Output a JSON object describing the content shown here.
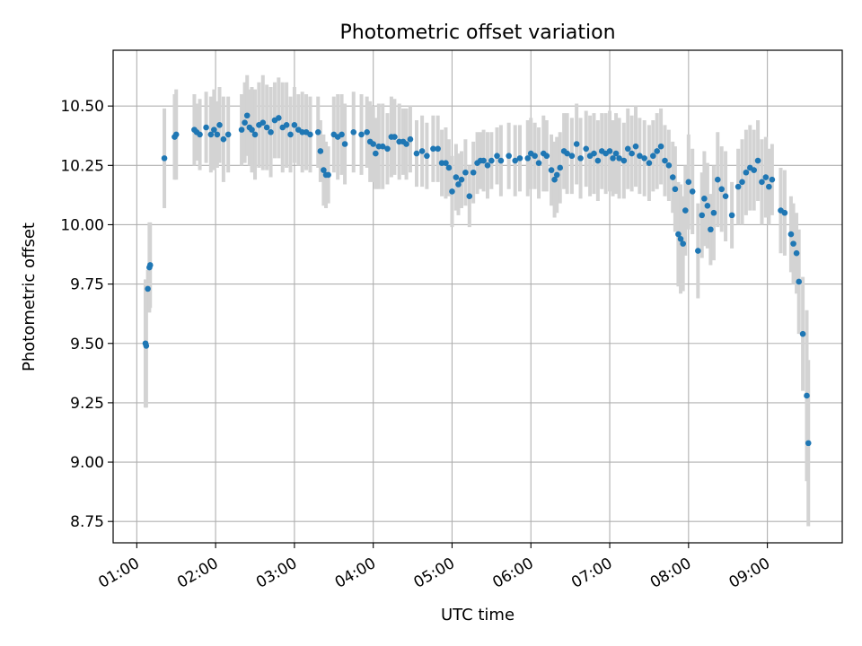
{
  "chart_data": {
    "type": "scatter",
    "title": "Photometric offset variation",
    "xlabel": "UTC time",
    "ylabel": "Photometric offset",
    "x_unit": "hours UTC",
    "xlim": [
      0.7,
      9.95
    ],
    "ylim": [
      8.66,
      10.735
    ],
    "x_ticks": [
      1,
      2,
      3,
      4,
      5,
      6,
      7,
      8,
      9
    ],
    "x_tick_labels": [
      "01:00",
      "02:00",
      "03:00",
      "04:00",
      "05:00",
      "06:00",
      "07:00",
      "08:00",
      "09:00"
    ],
    "y_ticks": [
      8.75,
      9.0,
      9.25,
      9.5,
      9.75,
      10.0,
      10.25,
      10.5
    ],
    "y_tick_labels": [
      "8.75",
      "9.00",
      "9.25",
      "9.50",
      "9.75",
      "10.00",
      "10.25",
      "10.50"
    ],
    "grid": true,
    "colors": {
      "points": "#1f77b4",
      "errorbars": "#d3d3d3",
      "grid": "#b0b0b0"
    },
    "series": [
      {
        "marker": "circle",
        "errorbar": "vertical",
        "points": [
          [
            1.11,
            9.5,
            0.27
          ],
          [
            1.12,
            9.49,
            0.26
          ],
          [
            1.14,
            9.73,
            0.08
          ],
          [
            1.16,
            9.82,
            0.19
          ],
          [
            1.17,
            9.83,
            0.18
          ],
          [
            1.35,
            10.28,
            0.21
          ],
          [
            1.48,
            10.37,
            0.18
          ],
          [
            1.5,
            10.38,
            0.19
          ],
          [
            1.73,
            10.4,
            0.15
          ],
          [
            1.76,
            10.39,
            0.12
          ],
          [
            1.8,
            10.38,
            0.15
          ],
          [
            1.88,
            10.41,
            0.15
          ],
          [
            1.94,
            10.38,
            0.16
          ],
          [
            1.98,
            10.4,
            0.17
          ],
          [
            2.02,
            10.38,
            0.14
          ],
          [
            2.05,
            10.42,
            0.16
          ],
          [
            2.1,
            10.36,
            0.18
          ],
          [
            2.16,
            10.38,
            0.16
          ],
          [
            2.33,
            10.4,
            0.15
          ],
          [
            2.37,
            10.43,
            0.17
          ],
          [
            2.4,
            10.46,
            0.17
          ],
          [
            2.43,
            10.41,
            0.16
          ],
          [
            2.46,
            10.4,
            0.18
          ],
          [
            2.5,
            10.38,
            0.19
          ],
          [
            2.55,
            10.42,
            0.18
          ],
          [
            2.6,
            10.43,
            0.2
          ],
          [
            2.65,
            10.41,
            0.18
          ],
          [
            2.7,
            10.39,
            0.19
          ],
          [
            2.75,
            10.44,
            0.16
          ],
          [
            2.8,
            10.45,
            0.17
          ],
          [
            2.85,
            10.41,
            0.19
          ],
          [
            2.9,
            10.42,
            0.18
          ],
          [
            2.95,
            10.38,
            0.16
          ],
          [
            3.0,
            10.42,
            0.16
          ],
          [
            3.05,
            10.4,
            0.15
          ],
          [
            3.1,
            10.39,
            0.17
          ],
          [
            3.15,
            10.39,
            0.16
          ],
          [
            3.2,
            10.38,
            0.16
          ],
          [
            3.3,
            10.39,
            0.15
          ],
          [
            3.33,
            10.31,
            0.13
          ],
          [
            3.37,
            10.23,
            0.15
          ],
          [
            3.4,
            10.21,
            0.14
          ],
          [
            3.43,
            10.21,
            0.12
          ],
          [
            3.5,
            10.38,
            0.16
          ],
          [
            3.55,
            10.37,
            0.18
          ],
          [
            3.6,
            10.38,
            0.17
          ],
          [
            3.64,
            10.34,
            0.17
          ],
          [
            3.75,
            10.39,
            0.17
          ],
          [
            3.85,
            10.38,
            0.17
          ],
          [
            3.92,
            10.39,
            0.15
          ],
          [
            3.96,
            10.35,
            0.17
          ],
          [
            4.0,
            10.34,
            0.16
          ],
          [
            4.03,
            10.3,
            0.15
          ],
          [
            4.07,
            10.33,
            0.18
          ],
          [
            4.12,
            10.33,
            0.18
          ],
          [
            4.18,
            10.32,
            0.15
          ],
          [
            4.23,
            10.37,
            0.17
          ],
          [
            4.27,
            10.37,
            0.16
          ],
          [
            4.33,
            10.35,
            0.16
          ],
          [
            4.38,
            10.35,
            0.14
          ],
          [
            4.42,
            10.34,
            0.15
          ],
          [
            4.47,
            10.36,
            0.14
          ],
          [
            4.55,
            10.3,
            0.14
          ],
          [
            4.62,
            10.31,
            0.15
          ],
          [
            4.68,
            10.29,
            0.14
          ],
          [
            4.76,
            10.32,
            0.14
          ],
          [
            4.82,
            10.32,
            0.14
          ],
          [
            4.87,
            10.26,
            0.14
          ],
          [
            4.92,
            10.26,
            0.15
          ],
          [
            4.96,
            10.24,
            0.12
          ],
          [
            5.0,
            10.14,
            0.15
          ],
          [
            5.05,
            10.2,
            0.14
          ],
          [
            5.08,
            10.17,
            0.13
          ],
          [
            5.12,
            10.19,
            0.12
          ],
          [
            5.17,
            10.22,
            0.14
          ],
          [
            5.22,
            10.12,
            0.13
          ],
          [
            5.27,
            10.22,
            0.13
          ],
          [
            5.32,
            10.26,
            0.13
          ],
          [
            5.36,
            10.27,
            0.12
          ],
          [
            5.4,
            10.27,
            0.13
          ],
          [
            5.45,
            10.25,
            0.14
          ],
          [
            5.5,
            10.27,
            0.12
          ],
          [
            5.57,
            10.29,
            0.12
          ],
          [
            5.62,
            10.27,
            0.15
          ],
          [
            5.72,
            10.29,
            0.14
          ],
          [
            5.8,
            10.27,
            0.15
          ],
          [
            5.86,
            10.28,
            0.14
          ],
          [
            5.96,
            10.28,
            0.16
          ],
          [
            6.0,
            10.3,
            0.15
          ],
          [
            6.05,
            10.29,
            0.14
          ],
          [
            6.1,
            10.26,
            0.15
          ],
          [
            6.16,
            10.3,
            0.16
          ],
          [
            6.2,
            10.29,
            0.15
          ],
          [
            6.26,
            10.23,
            0.15
          ],
          [
            6.3,
            10.19,
            0.16
          ],
          [
            6.33,
            10.21,
            0.16
          ],
          [
            6.37,
            10.24,
            0.15
          ],
          [
            6.42,
            10.31,
            0.16
          ],
          [
            6.46,
            10.3,
            0.17
          ],
          [
            6.52,
            10.29,
            0.16
          ],
          [
            6.58,
            10.34,
            0.17
          ],
          [
            6.63,
            10.28,
            0.17
          ],
          [
            6.7,
            10.32,
            0.16
          ],
          [
            6.75,
            10.29,
            0.17
          ],
          [
            6.8,
            10.3,
            0.17
          ],
          [
            6.85,
            10.27,
            0.17
          ],
          [
            6.9,
            10.31,
            0.16
          ],
          [
            6.95,
            10.3,
            0.17
          ],
          [
            7.0,
            10.31,
            0.17
          ],
          [
            7.04,
            10.28,
            0.16
          ],
          [
            7.08,
            10.3,
            0.17
          ],
          [
            7.12,
            10.28,
            0.17
          ],
          [
            7.18,
            10.27,
            0.16
          ],
          [
            7.23,
            10.32,
            0.17
          ],
          [
            7.28,
            10.3,
            0.16
          ],
          [
            7.33,
            10.33,
            0.17
          ],
          [
            7.38,
            10.29,
            0.16
          ],
          [
            7.44,
            10.28,
            0.16
          ],
          [
            7.5,
            10.26,
            0.16
          ],
          [
            7.55,
            10.29,
            0.15
          ],
          [
            7.6,
            10.31,
            0.16
          ],
          [
            7.65,
            10.33,
            0.16
          ],
          [
            7.7,
            10.27,
            0.15
          ],
          [
            7.75,
            10.25,
            0.15
          ],
          [
            7.8,
            10.2,
            0.15
          ],
          [
            7.83,
            10.15,
            0.18
          ],
          [
            7.87,
            9.96,
            0.22
          ],
          [
            7.9,
            9.94,
            0.23
          ],
          [
            7.93,
            9.92,
            0.2
          ],
          [
            7.96,
            10.06,
            0.19
          ],
          [
            8.0,
            10.18,
            0.2
          ],
          [
            8.05,
            10.14,
            0.18
          ],
          [
            8.12,
            9.89,
            0.2
          ],
          [
            8.17,
            10.04,
            0.18
          ],
          [
            8.2,
            10.11,
            0.2
          ],
          [
            8.24,
            10.08,
            0.18
          ],
          [
            8.28,
            9.98,
            0.15
          ],
          [
            8.32,
            10.05,
            0.2
          ],
          [
            8.37,
            10.19,
            0.2
          ],
          [
            8.42,
            10.15,
            0.18
          ],
          [
            8.47,
            10.12,
            0.19
          ],
          [
            8.55,
            10.04,
            0.14
          ],
          [
            8.63,
            10.16,
            0.16
          ],
          [
            8.68,
            10.18,
            0.18
          ],
          [
            8.73,
            10.22,
            0.18
          ],
          [
            8.78,
            10.24,
            0.18
          ],
          [
            8.83,
            10.23,
            0.17
          ],
          [
            8.88,
            10.27,
            0.17
          ],
          [
            8.93,
            10.18,
            0.18
          ],
          [
            8.98,
            10.2,
            0.17
          ],
          [
            9.02,
            10.16,
            0.16
          ],
          [
            9.06,
            10.19,
            0.15
          ],
          [
            9.17,
            10.06,
            0.18
          ],
          [
            9.22,
            10.05,
            0.18
          ],
          [
            9.3,
            9.96,
            0.16
          ],
          [
            9.33,
            9.92,
            0.17
          ],
          [
            9.37,
            9.88,
            0.17
          ],
          [
            9.4,
            9.76,
            0.22
          ],
          [
            9.45,
            9.54,
            0.24
          ],
          [
            9.5,
            9.28,
            0.36
          ],
          [
            9.52,
            9.08,
            0.35
          ]
        ]
      }
    ]
  }
}
